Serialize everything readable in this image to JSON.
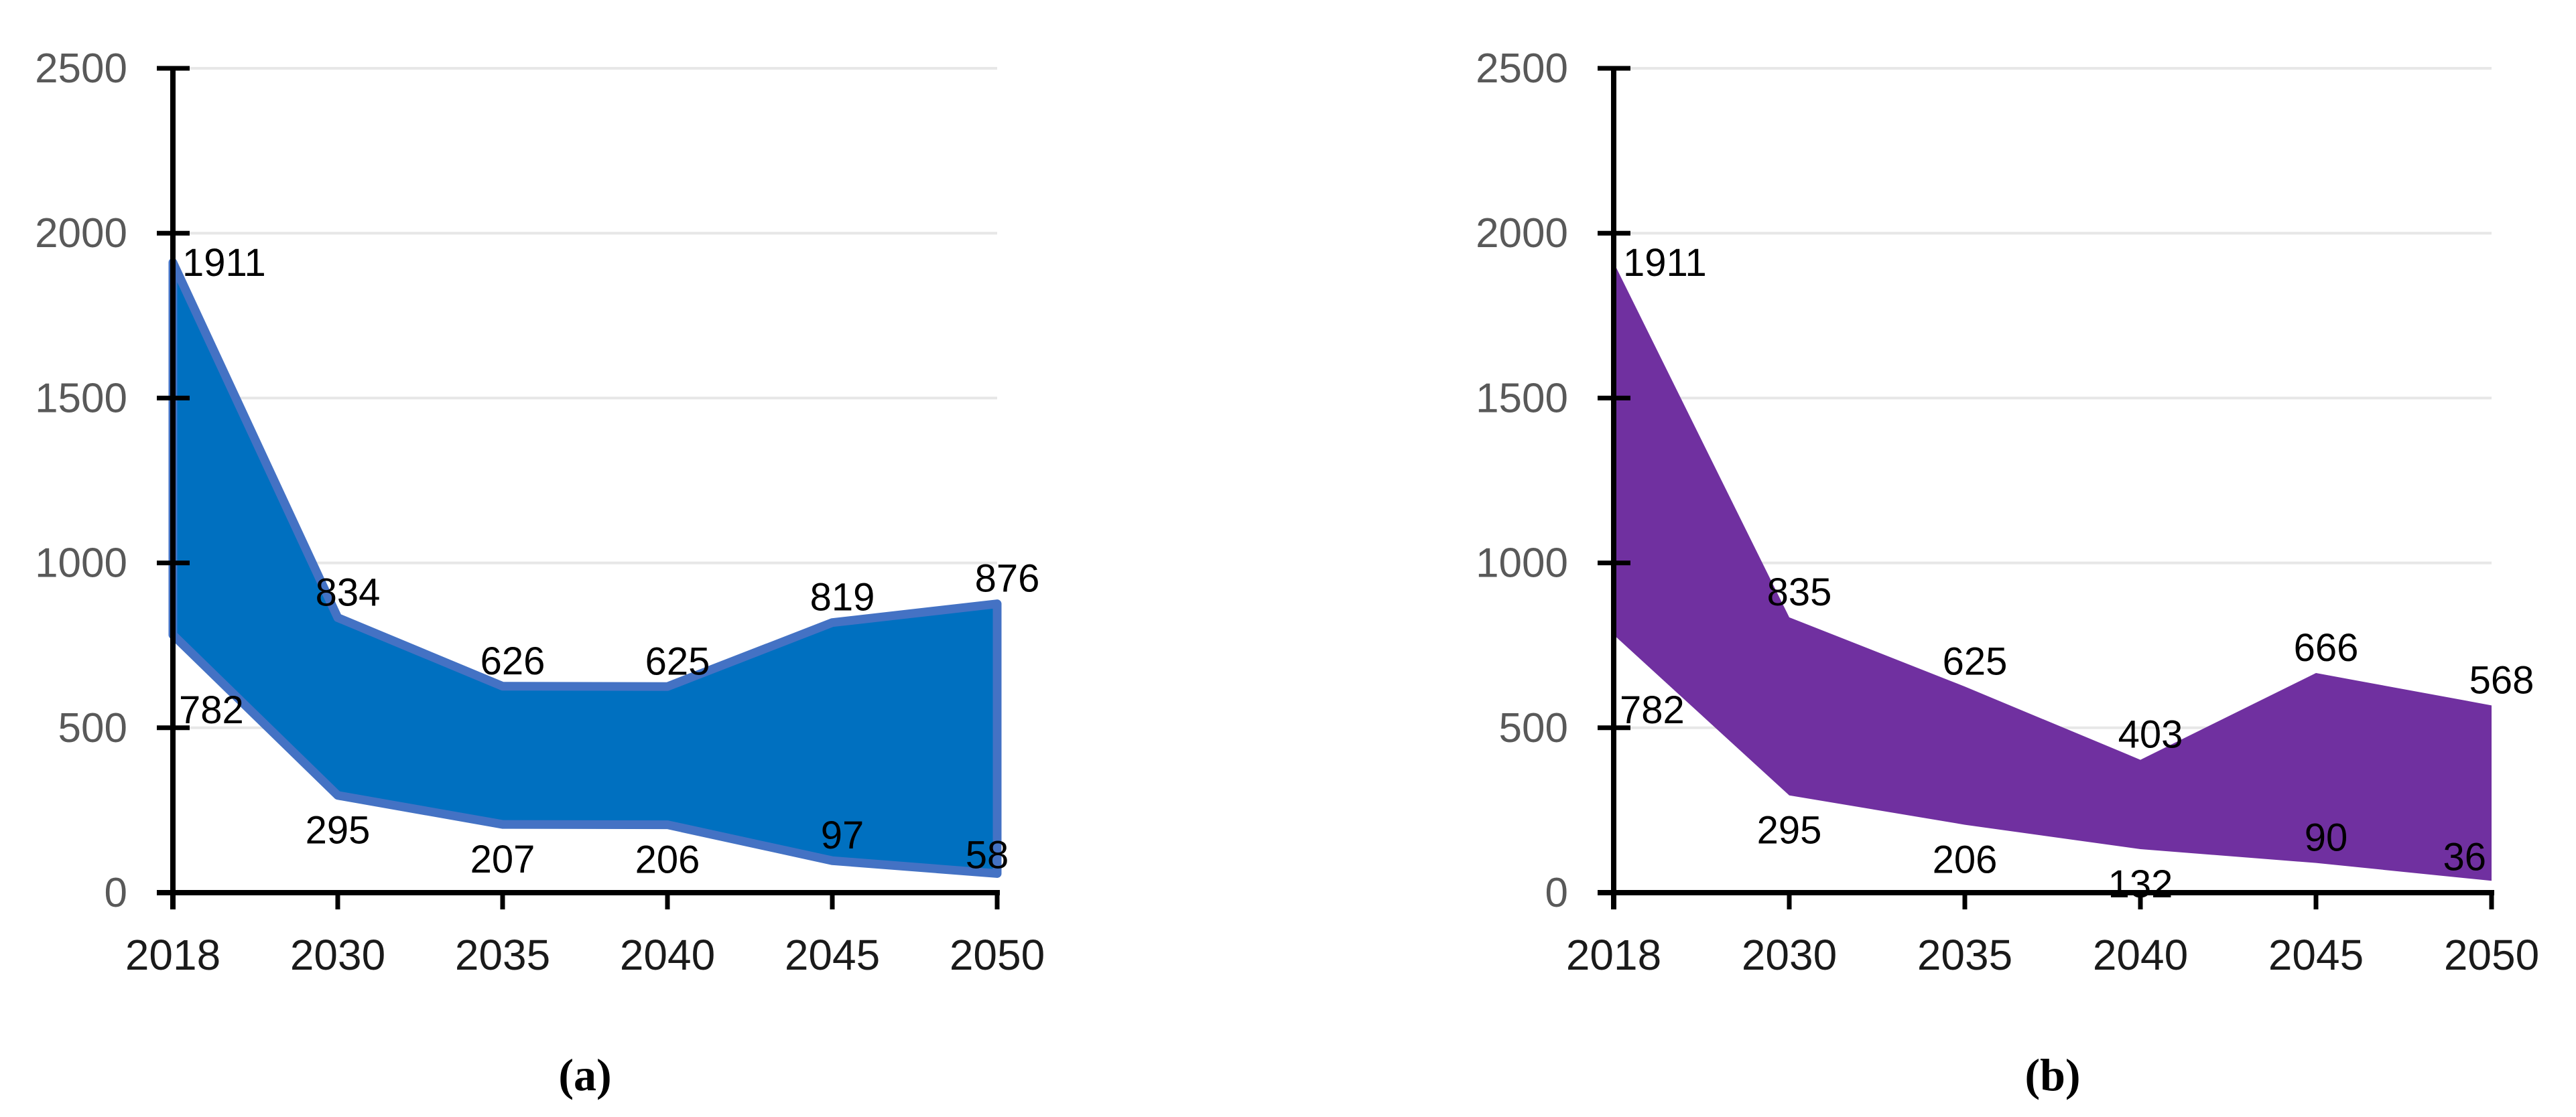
{
  "page": {
    "background": "#ffffff"
  },
  "styles": {
    "grid_color": "#E7E7E7",
    "axis_color": "#000000",
    "ytick_color": "#595959",
    "xtick_color": "#1A1A1A",
    "data_label_color": "#000000",
    "caption_color": "#000000"
  },
  "chart_data": [
    {
      "id": "a",
      "type": "area",
      "subtype": "range-band",
      "caption": "(a)",
      "title": "",
      "xlabel": "",
      "ylabel": "",
      "grid": true,
      "legend": "none",
      "categories": [
        "2018",
        "2030",
        "2035",
        "2040",
        "2045",
        "2050"
      ],
      "ylim": [
        0,
        2500
      ],
      "yticks": [
        0,
        500,
        1000,
        1500,
        2000,
        2500
      ],
      "fill": "#0070C0",
      "stroke": "#4472C4",
      "stroke_width": 13,
      "series": [
        {
          "name": "upper",
          "values": [
            1911,
            834,
            626,
            625,
            819,
            876
          ],
          "label_pos": [
            "right",
            "above",
            "above",
            "above",
            "above",
            "above"
          ]
        },
        {
          "name": "lower",
          "values": [
            782,
            295,
            207,
            206,
            97,
            58
          ],
          "label_pos": [
            "below-start",
            "below",
            "below",
            "below",
            "above",
            "above-left"
          ]
        }
      ],
      "layout": {
        "axis_x": 258,
        "right_x": 1488,
        "top_y": 102,
        "bottom_y": 1333
      }
    },
    {
      "id": "b",
      "type": "area",
      "subtype": "range-band",
      "caption": "(b)",
      "title": "",
      "xlabel": "",
      "ylabel": "",
      "grid": true,
      "legend": "none",
      "categories": [
        "2018",
        "2030",
        "2035",
        "2040",
        "2045",
        "2050"
      ],
      "ylim": [
        0,
        2500
      ],
      "yticks": [
        0,
        500,
        1000,
        1500,
        2000,
        2500
      ],
      "fill": "#7030A0",
      "stroke": "none",
      "stroke_width": 0,
      "series": [
        {
          "name": "upper",
          "values": [
            1911,
            835,
            625,
            403,
            666,
            568
          ],
          "label_pos": [
            "right",
            "above",
            "above",
            "above",
            "above",
            "above"
          ]
        },
        {
          "name": "lower",
          "values": [
            782,
            295,
            206,
            132,
            90,
            36
          ],
          "label_pos": [
            "below-start",
            "below",
            "below",
            "below",
            "above",
            "above-end"
          ]
        }
      ],
      "layout": {
        "axis_x": 486,
        "right_x": 1796,
        "top_y": 102,
        "bottom_y": 1333
      }
    }
  ]
}
